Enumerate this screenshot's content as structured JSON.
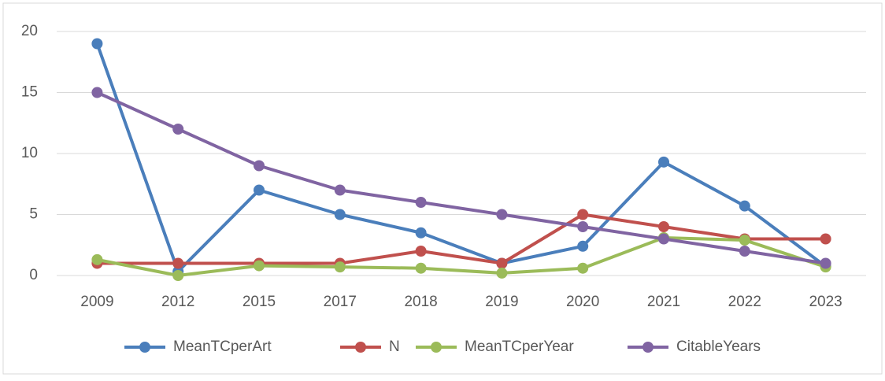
{
  "chart_data": {
    "type": "line",
    "categories": [
      "2009",
      "2012",
      "2015",
      "2017",
      "2018",
      "2019",
      "2020",
      "2021",
      "2022",
      "2023"
    ],
    "series": [
      {
        "name": "MeanTCperArt",
        "color": "#4a7ebb",
        "values": [
          19,
          0.33,
          7,
          5,
          3.5,
          1,
          2.4,
          9.3,
          5.7,
          0.75
        ]
      },
      {
        "name": "N",
        "color": "#c0504d",
        "values": [
          1,
          1,
          1,
          1,
          2,
          1,
          5,
          4,
          3,
          3
        ]
      },
      {
        "name": "MeanTCperYear",
        "color": "#9bbb59",
        "values": [
          1.3,
          0,
          0.8,
          0.7,
          0.6,
          0.2,
          0.6,
          3.1,
          2.9,
          0.7
        ]
      },
      {
        "name": "CitableYears",
        "color": "#8064a2",
        "values": [
          15,
          12,
          9,
          7,
          6,
          5,
          4,
          3,
          2,
          1
        ]
      }
    ],
    "ylim": [
      0,
      20
    ],
    "yticks": [
      0,
      5,
      10,
      15,
      20
    ],
    "grid": true,
    "legend": "bottom"
  }
}
